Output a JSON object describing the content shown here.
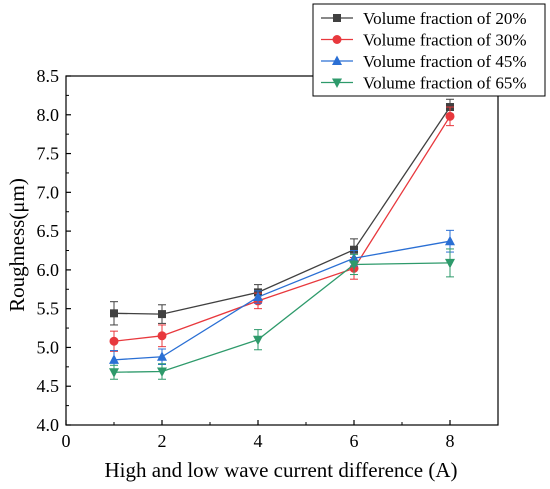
{
  "chart_data": {
    "type": "line",
    "title": "",
    "xlabel": "High and low wave current difference (A)",
    "ylabel": "Roughness(μm)",
    "xlim": [
      0,
      9
    ],
    "ylim": [
      4.0,
      8.5
    ],
    "x_ticks": [
      0,
      2,
      4,
      6,
      8
    ],
    "y_ticks": [
      4.0,
      4.5,
      5.0,
      5.5,
      6.0,
      6.5,
      7.0,
      7.5,
      8.0,
      8.5
    ],
    "x_tick_labels": [
      "0",
      "2",
      "4",
      "6",
      "8"
    ],
    "y_tick_labels": [
      "4.0",
      "4.5",
      "5.0",
      "5.5",
      "6.0",
      "6.5",
      "7.0",
      "7.5",
      "8.0",
      "8.5"
    ],
    "x": [
      1,
      2,
      4,
      6,
      8
    ],
    "legend_position": "top-right",
    "grid": false,
    "series": [
      {
        "name": "Volume fraction of 20%",
        "color": "#404040",
        "marker": "square",
        "values": [
          5.44,
          5.43,
          5.71,
          6.26,
          8.1
        ],
        "errors": [
          0.15,
          0.12,
          0.1,
          0.14,
          0.1
        ]
      },
      {
        "name": "Volume fraction of 30%",
        "color": "#e8383d",
        "marker": "circle",
        "values": [
          5.08,
          5.15,
          5.6,
          6.02,
          7.98
        ],
        "errors": [
          0.13,
          0.14,
          0.1,
          0.14,
          0.12
        ]
      },
      {
        "name": "Volume fraction of 45%",
        "color": "#2a6fd4",
        "marker": "triangle-up",
        "values": [
          4.84,
          4.88,
          5.65,
          6.15,
          6.37
        ],
        "errors": [
          0.12,
          0.1,
          0.08,
          0.1,
          0.14
        ]
      },
      {
        "name": "Volume fraction of 65%",
        "color": "#2e9a6b",
        "marker": "triangle-down",
        "values": [
          4.68,
          4.69,
          5.1,
          6.07,
          6.09
        ],
        "errors": [
          0.09,
          0.1,
          0.13,
          0.13,
          0.18
        ]
      }
    ]
  }
}
